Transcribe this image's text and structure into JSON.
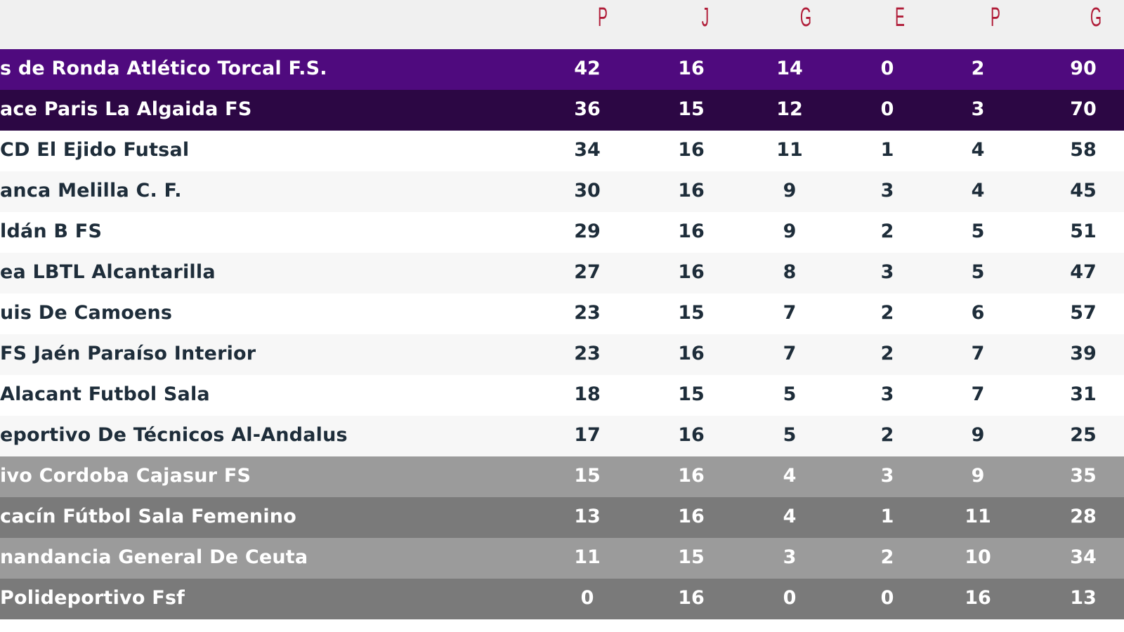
{
  "table": {
    "columns": [
      "P",
      "J",
      "G",
      "E",
      "P",
      "G"
    ],
    "header_color": "#b01c38",
    "rows": [
      {
        "team": "s de Ronda Atlético Torcal F.S.",
        "pts": "42",
        "played": "16",
        "won": "14",
        "drawn": "0",
        "lost": "2",
        "goals": "90",
        "style": "leader"
      },
      {
        "team": "ace Paris La Algaida FS",
        "pts": "36",
        "played": "15",
        "won": "12",
        "drawn": "0",
        "lost": "3",
        "goals": "70",
        "style": "second"
      },
      {
        "team": "CD El Ejido Futsal",
        "pts": "34",
        "played": "16",
        "won": "11",
        "drawn": "1",
        "lost": "4",
        "goals": "58",
        "style": "white"
      },
      {
        "team": "anca Melilla C. F.",
        "pts": "30",
        "played": "16",
        "won": "9",
        "drawn": "3",
        "lost": "4",
        "goals": "45",
        "style": "alt"
      },
      {
        "team": "ldán B FS",
        "pts": "29",
        "played": "16",
        "won": "9",
        "drawn": "2",
        "lost": "5",
        "goals": "51",
        "style": "white"
      },
      {
        "team": "ea LBTL Alcantarilla",
        "pts": "27",
        "played": "16",
        "won": "8",
        "drawn": "3",
        "lost": "5",
        "goals": "47",
        "style": "alt"
      },
      {
        "team": "uis De Camoens",
        "pts": "23",
        "played": "15",
        "won": "7",
        "drawn": "2",
        "lost": "6",
        "goals": "57",
        "style": "white"
      },
      {
        "team": " FS Jaén Paraíso Interior",
        "pts": "23",
        "played": "16",
        "won": "7",
        "drawn": "2",
        "lost": "7",
        "goals": "39",
        "style": "alt"
      },
      {
        "team": "Alacant Futbol Sala",
        "pts": "18",
        "played": "15",
        "won": "5",
        "drawn": "3",
        "lost": "7",
        "goals": "31",
        "style": "white"
      },
      {
        "team": "eportivo De Técnicos Al-Andalus",
        "pts": "17",
        "played": "16",
        "won": "5",
        "drawn": "2",
        "lost": "9",
        "goals": "25",
        "style": "alt"
      },
      {
        "team": "ivo Cordoba Cajasur FS",
        "pts": "15",
        "played": "16",
        "won": "4",
        "drawn": "3",
        "lost": "9",
        "goals": "35",
        "style": "rel-a"
      },
      {
        "team": "cacín Fútbol Sala Femenino",
        "pts": "13",
        "played": "16",
        "won": "4",
        "drawn": "1",
        "lost": "11",
        "goals": "28",
        "style": "rel-b"
      },
      {
        "team": "nandancia General De Ceuta",
        "pts": "11",
        "played": "15",
        "won": "3",
        "drawn": "2",
        "lost": "10",
        "goals": "34",
        "style": "rel-a"
      },
      {
        "team": "Polideportivo Fsf",
        "pts": "0",
        "played": "16",
        "won": "0",
        "drawn": "0",
        "lost": "16",
        "goals": "13",
        "style": "rel-b"
      }
    ]
  },
  "colors": {
    "leader_row": "#4f0a7e",
    "second_row": "#2c0744",
    "relegation_light": "#9b9b9b",
    "relegation_dark": "#7a7a7a",
    "text_dark": "#1e2d3a"
  }
}
